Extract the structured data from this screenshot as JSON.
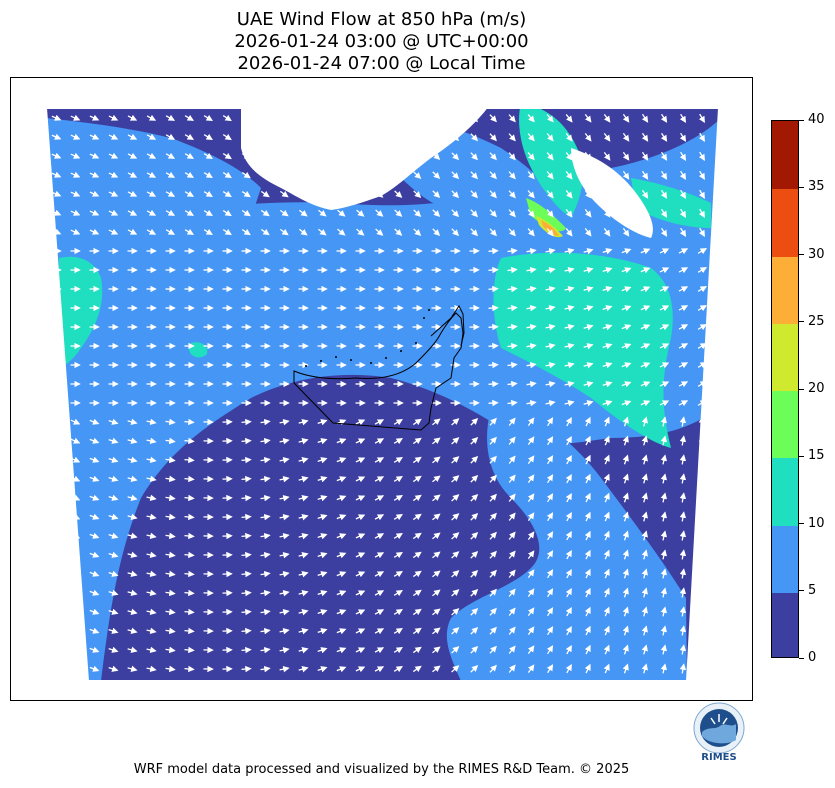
{
  "title": {
    "line1": "UAE Wind Flow at 850 hPa (m/s)",
    "line2": "2026-01-24 03:00 @ UTC+00:00",
    "line3": "2026-01-24 07:00 @ Local Time"
  },
  "colorbar": {
    "levels": [
      0,
      5,
      10,
      15,
      20,
      25,
      30,
      35,
      40
    ],
    "labels": [
      "0",
      "5",
      "10",
      "15",
      "20",
      "25",
      "30",
      "35",
      "40"
    ],
    "colors": [
      "#3c3f9f",
      "#4596f5",
      "#1fdfc0",
      "#6dfd58",
      "#cfe92e",
      "#fcae37",
      "#ec4d11",
      "#a31802"
    ]
  },
  "map_colors": {
    "land_mask": "#ffffff",
    "boundary": "#000000",
    "arrows": "#ffffff"
  },
  "logo": {
    "text": "RIMES"
  },
  "footer": "WRF model data processed and visualized by the RIMES R&D Team. © 2025"
}
